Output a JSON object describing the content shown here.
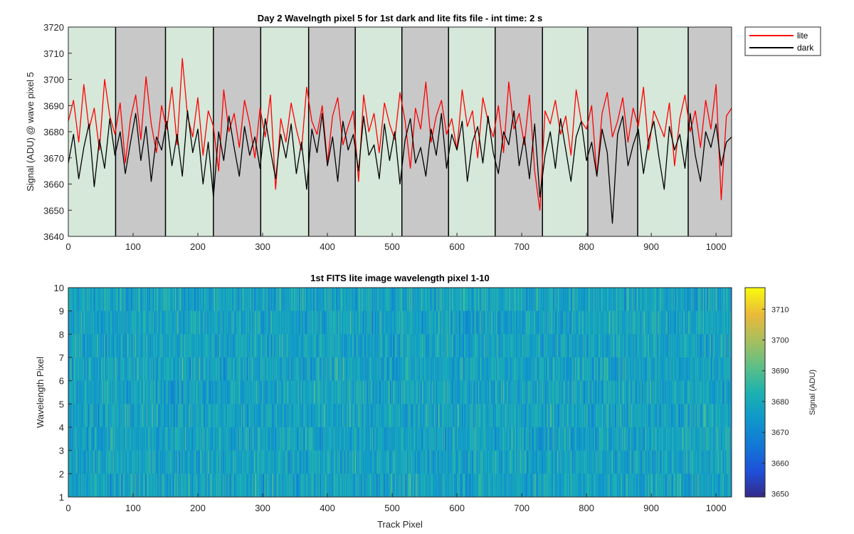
{
  "chart_data": [
    {
      "type": "line",
      "title": "Day 2 Wavelngth pixel 5 for 1st dark and lite fits file - int time: 2 s",
      "xlabel": "",
      "ylabel": "Signal (ADU) @ wave pixel 5",
      "xlim": [
        0,
        1024
      ],
      "ylim": [
        3640,
        3720
      ],
      "xticks": [
        0,
        100,
        200,
        300,
        400,
        500,
        600,
        700,
        800,
        900,
        1000
      ],
      "yticks": [
        3640,
        3650,
        3660,
        3670,
        3680,
        3690,
        3700,
        3710,
        3720
      ],
      "grid": false,
      "legend": "outside-top-right",
      "bands": [
        {
          "x0": 0,
          "x1": 73,
          "kind": "lite"
        },
        {
          "x0": 73,
          "x1": 150,
          "kind": "dark"
        },
        {
          "x0": 150,
          "x1": 224,
          "kind": "lite"
        },
        {
          "x0": 224,
          "x1": 297,
          "kind": "dark"
        },
        {
          "x0": 297,
          "x1": 371,
          "kind": "lite"
        },
        {
          "x0": 371,
          "x1": 443,
          "kind": "dark"
        },
        {
          "x0": 443,
          "x1": 515,
          "kind": "lite"
        },
        {
          "x0": 515,
          "x1": 587,
          "kind": "dark"
        },
        {
          "x0": 587,
          "x1": 659,
          "kind": "lite"
        },
        {
          "x0": 659,
          "x1": 732,
          "kind": "dark"
        },
        {
          "x0": 732,
          "x1": 802,
          "kind": "lite"
        },
        {
          "x0": 802,
          "x1": 879,
          "kind": "dark"
        },
        {
          "x0": 879,
          "x1": 957,
          "kind": "lite"
        },
        {
          "x0": 957,
          "x1": 1024,
          "kind": "dark"
        }
      ],
      "band_colors": {
        "lite": "#d5e8da",
        "dark": "#c8c8c8"
      },
      "series": [
        {
          "name": "lite",
          "color": "#ff0000",
          "x": [
            0,
            8,
            16,
            24,
            32,
            40,
            48,
            56,
            64,
            72,
            80,
            88,
            96,
            104,
            112,
            120,
            128,
            136,
            144,
            152,
            160,
            168,
            176,
            184,
            192,
            200,
            208,
            216,
            224,
            232,
            240,
            248,
            256,
            264,
            272,
            280,
            288,
            296,
            304,
            312,
            320,
            328,
            336,
            344,
            352,
            360,
            368,
            376,
            384,
            392,
            400,
            408,
            416,
            424,
            432,
            440,
            448,
            456,
            464,
            472,
            480,
            488,
            496,
            504,
            512,
            520,
            528,
            536,
            544,
            552,
            560,
            568,
            576,
            584,
            592,
            600,
            608,
            616,
            624,
            632,
            640,
            648,
            656,
            664,
            672,
            680,
            688,
            696,
            704,
            712,
            720,
            728,
            736,
            744,
            752,
            760,
            768,
            776,
            784,
            792,
            800,
            808,
            816,
            824,
            832,
            840,
            848,
            856,
            864,
            872,
            880,
            888,
            896,
            904,
            912,
            920,
            928,
            936,
            944,
            952,
            960,
            968,
            976,
            984,
            992,
            1000,
            1008,
            1016,
            1024
          ],
          "y": [
            3684,
            3692,
            3676,
            3698,
            3681,
            3689,
            3673,
            3700,
            3686,
            3679,
            3691,
            3668,
            3685,
            3694,
            3677,
            3701,
            3683,
            3672,
            3690,
            3681,
            3697,
            3675,
            3708,
            3686,
            3678,
            3693,
            3671,
            3688,
            3682,
            3665,
            3696,
            3680,
            3687,
            3674,
            3692,
            3683,
            3670,
            3689,
            3678,
            3694,
            3658,
            3685,
            3676,
            3691,
            3681,
            3673,
            3697,
            3684,
            3679,
            3690,
            3668,
            3686,
            3693,
            3675,
            3682,
            3688,
            3661,
            3694,
            3680,
            3687,
            3672,
            3691,
            3683,
            3677,
            3695,
            3684,
            3666,
            3689,
            3681,
            3699,
            3676,
            3686,
            3692,
            3679,
            3685,
            3673,
            3696,
            3682,
            3688,
            3670,
            3693,
            3684,
            3678,
            3690,
            3672,
            3699,
            3681,
            3687,
            3675,
            3694,
            3665,
            3650,
            3688,
            3683,
            3692,
            3679,
            3686,
            3671,
            3696,
            3684,
            3681,
            3690,
            3663,
            3687,
            3695,
            3678,
            3684,
            3693,
            3676,
            3689,
            3682,
            3697,
            3673,
            3688,
            3683,
            3678,
            3691,
            3667,
            3685,
            3694,
            3680,
            3688,
            3674,
            3692,
            3681,
            3698,
            3654,
            3686,
            3689
          ]
        },
        {
          "name": "dark",
          "color": "#000000",
          "x": [
            0,
            8,
            16,
            24,
            32,
            40,
            48,
            56,
            64,
            72,
            80,
            88,
            96,
            104,
            112,
            120,
            128,
            136,
            144,
            152,
            160,
            168,
            176,
            184,
            192,
            200,
            208,
            216,
            224,
            232,
            240,
            248,
            256,
            264,
            272,
            280,
            288,
            296,
            304,
            312,
            320,
            328,
            336,
            344,
            352,
            360,
            368,
            376,
            384,
            392,
            400,
            408,
            416,
            424,
            432,
            440,
            448,
            456,
            464,
            472,
            480,
            488,
            496,
            504,
            512,
            520,
            528,
            536,
            544,
            552,
            560,
            568,
            576,
            584,
            592,
            600,
            608,
            616,
            624,
            632,
            640,
            648,
            656,
            664,
            672,
            680,
            688,
            696,
            704,
            712,
            720,
            728,
            736,
            744,
            752,
            760,
            768,
            776,
            784,
            792,
            800,
            808,
            816,
            824,
            832,
            840,
            848,
            856,
            864,
            872,
            880,
            888,
            896,
            904,
            912,
            920,
            928,
            936,
            944,
            952,
            960,
            968,
            976,
            984,
            992,
            1000,
            1008,
            1016,
            1024
          ],
          "y": [
            3668,
            3679,
            3662,
            3674,
            3683,
            3659,
            3677,
            3666,
            3685,
            3671,
            3680,
            3664,
            3676,
            3687,
            3669,
            3682,
            3661,
            3678,
            3673,
            3684,
            3667,
            3679,
            3663,
            3688,
            3672,
            3681,
            3660,
            3676,
            3655,
            3680,
            3669,
            3686,
            3674,
            3663,
            3682,
            3671,
            3678,
            3666,
            3685,
            3673,
            3662,
            3679,
            3670,
            3683,
            3664,
            3676,
            3658,
            3681,
            3672,
            3687,
            3667,
            3678,
            3661,
            3684,
            3673,
            3679,
            3665,
            3686,
            3671,
            3675,
            3662,
            3683,
            3669,
            3680,
            3660,
            3677,
            3685,
            3668,
            3674,
            3663,
            3681,
            3671,
            3687,
            3666,
            3679,
            3673,
            3684,
            3661,
            3676,
            3682,
            3668,
            3686,
            3672,
            3664,
            3680,
            3675,
            3688,
            3667,
            3678,
            3662,
            3683,
            3655,
            3671,
            3680,
            3666,
            3685,
            3673,
            3661,
            3678,
            3684,
            3669,
            3676,
            3663,
            3681,
            3672,
            3645,
            3679,
            3686,
            3667,
            3675,
            3681,
            3664,
            3677,
            3684,
            3670,
            3658,
            3682,
            3673,
            3679,
            3666,
            3687,
            3671,
            3661,
            3680,
            3674,
            3683,
            3667,
            3676,
            3678
          ]
        }
      ]
    },
    {
      "type": "heatmap",
      "title": "1st FITS lite image wavelength pixel 1-10",
      "xlabel": "Track Pixel",
      "ylabel": "Wavelength Pixel",
      "xlim": [
        0,
        1024
      ],
      "ylim": [
        1,
        10
      ],
      "xticks": [
        0,
        100,
        200,
        300,
        400,
        500,
        600,
        700,
        800,
        900,
        1000
      ],
      "yticks": [
        1,
        2,
        3,
        4,
        5,
        6,
        7,
        8,
        9,
        10
      ],
      "rows": 9,
      "columns": 1024,
      "value_range": [
        3640,
        3720
      ],
      "colorbar": {
        "label": "Signal (ADU)",
        "clim": [
          3649,
          3717
        ],
        "ticks": [
          3650,
          3660,
          3670,
          3680,
          3690,
          3700,
          3710
        ],
        "colormap": "parula"
      }
    }
  ]
}
